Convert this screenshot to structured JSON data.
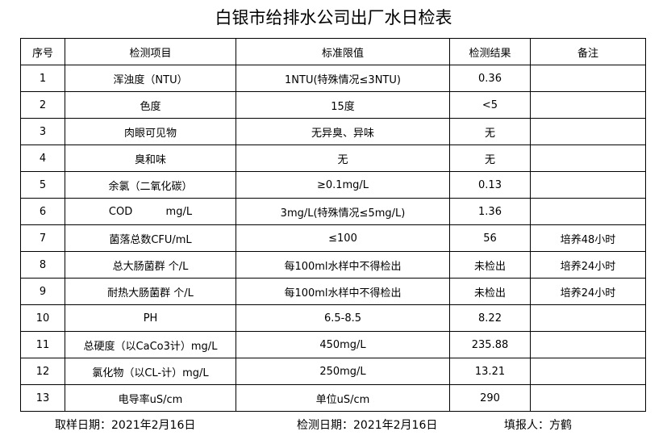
{
  "header": {
    "title": "白银市给排水公司出厂水日检表"
  },
  "table": {
    "columns": [
      "序号",
      "检测项目",
      "标准限值",
      "检测结果",
      "备注"
    ],
    "rows": [
      [
        "1",
        "浑浊度（NTU）",
        "1NTU(特殊情况≤3NTU)",
        "0.36"
      ],
      [
        "2",
        "色度",
        "15度",
        "<5"
      ],
      [
        "3",
        "肉眼可见物",
        "无异臭、异味",
        "无"
      ],
      [
        "4",
        "臭和味",
        "无",
        "无"
      ],
      [
        "5",
        "余氯（二氧化碳）",
        "≥0.1mg/L",
        "0.13"
      ],
      [
        "6",
        "COD          mg/L",
        "3mg/L(特殊情况≤5mg/L)",
        "1.36"
      ],
      [
        "7",
        "菌落总数CFU/mL",
        "≤100",
        "56",
        "培养48小时"
      ],
      [
        "8",
        "总大肠菌群 个/L",
        "每100ml水样中不得检出",
        "未检出",
        "培养24小时"
      ],
      [
        "9",
        "耐热大肠菌群 个/L",
        "每100ml水样中不得检出",
        "未检出",
        "培养24小时"
      ],
      [
        "10",
        "PH",
        "6.5-8.5",
        "8.22"
      ],
      [
        "11",
        "总硬度（以CaCo3计）mg/L",
        "450mg/L",
        "235.88"
      ],
      [
        "12",
        "氯化物（以CL-计）mg/L",
        "250mg/L",
        "13.21"
      ],
      [
        "13",
        "电导率uS/cm",
        "单位uS/cm",
        "290"
      ]
    ]
  },
  "footer": {
    "sampling_date": "取样日期：2021年2月16日",
    "test_date": "检测日期：2021年2月16日",
    "reporter": "填报人：方鹤"
  }
}
